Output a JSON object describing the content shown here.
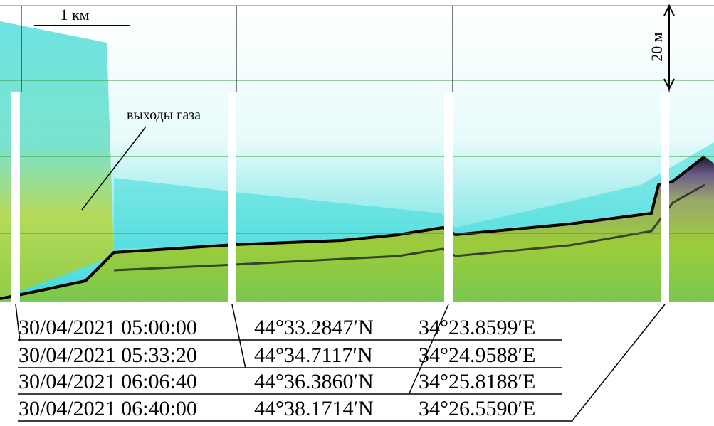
{
  "figure": {
    "scale_x": "1 км",
    "scale_y": "20 м",
    "gas_label": "выходы газа",
    "markers": [
      {
        "time": "30/04/2021 05:00:00",
        "lat": "44°33.2847′N",
        "lon": "34°23.8599′E"
      },
      {
        "time": "30/04/2021 05:33:20",
        "lat": "44°34.7117′N",
        "lon": "34°24.9588′E"
      },
      {
        "time": "30/04/2021 06:06:40",
        "lat": "44°36.3860′N",
        "lon": "34°25.8188′E"
      },
      {
        "time": "30/04/2021 06:40:00",
        "lat": "44°38.1714′N",
        "lon": "34°26.5590′E"
      }
    ]
  }
}
